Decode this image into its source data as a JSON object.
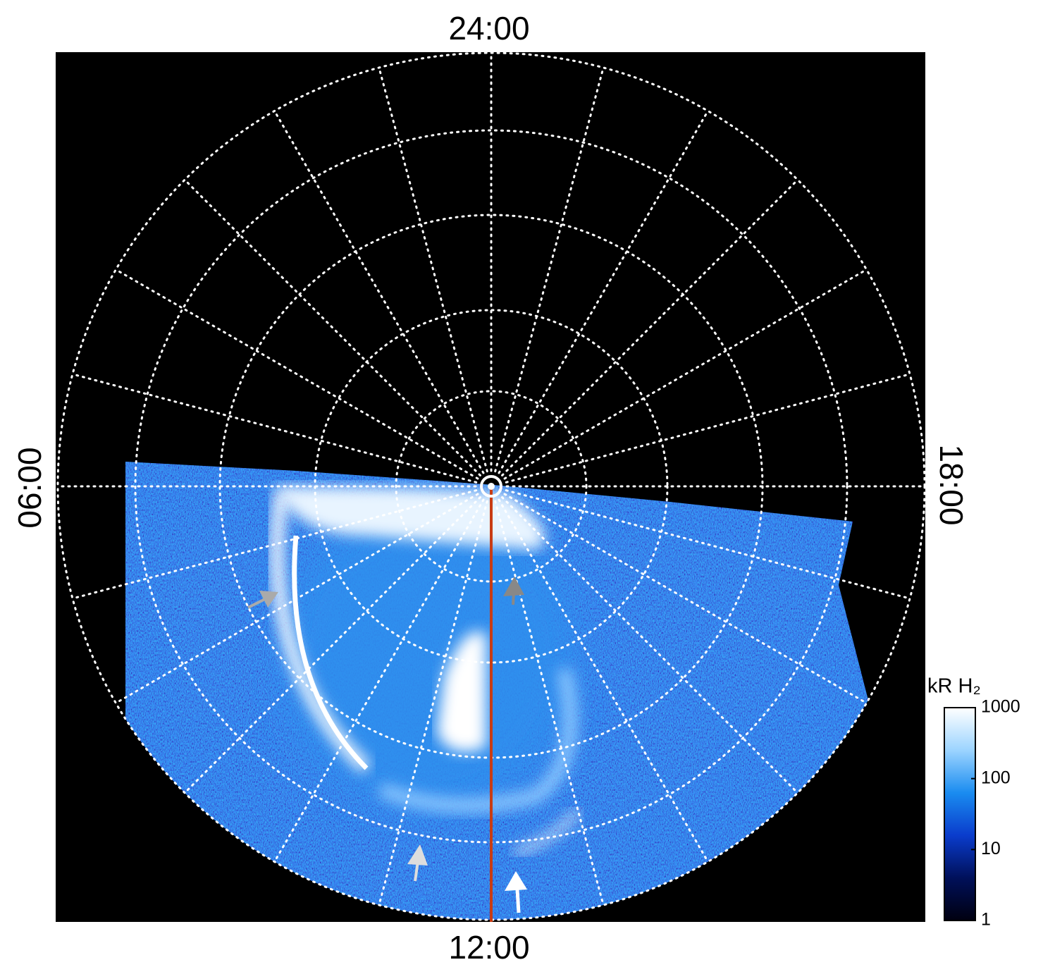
{
  "chart_data": {
    "type": "polar-image",
    "time_labels": {
      "top": "24:00",
      "bottom": "12:00",
      "left": "06:00",
      "right": "18:00"
    },
    "colorbar": {
      "label": "kR H₂",
      "scale": "log",
      "clim": [
        1,
        1000
      ],
      "ticks": [
        1,
        10,
        100,
        1000
      ],
      "colormap": [
        "#000010",
        "#00105a",
        "#0a3ccc",
        "#1a8cf0",
        "#9cd4ff",
        "#ffffff"
      ]
    },
    "meridian_color": "#c83c14",
    "grid": true
  }
}
